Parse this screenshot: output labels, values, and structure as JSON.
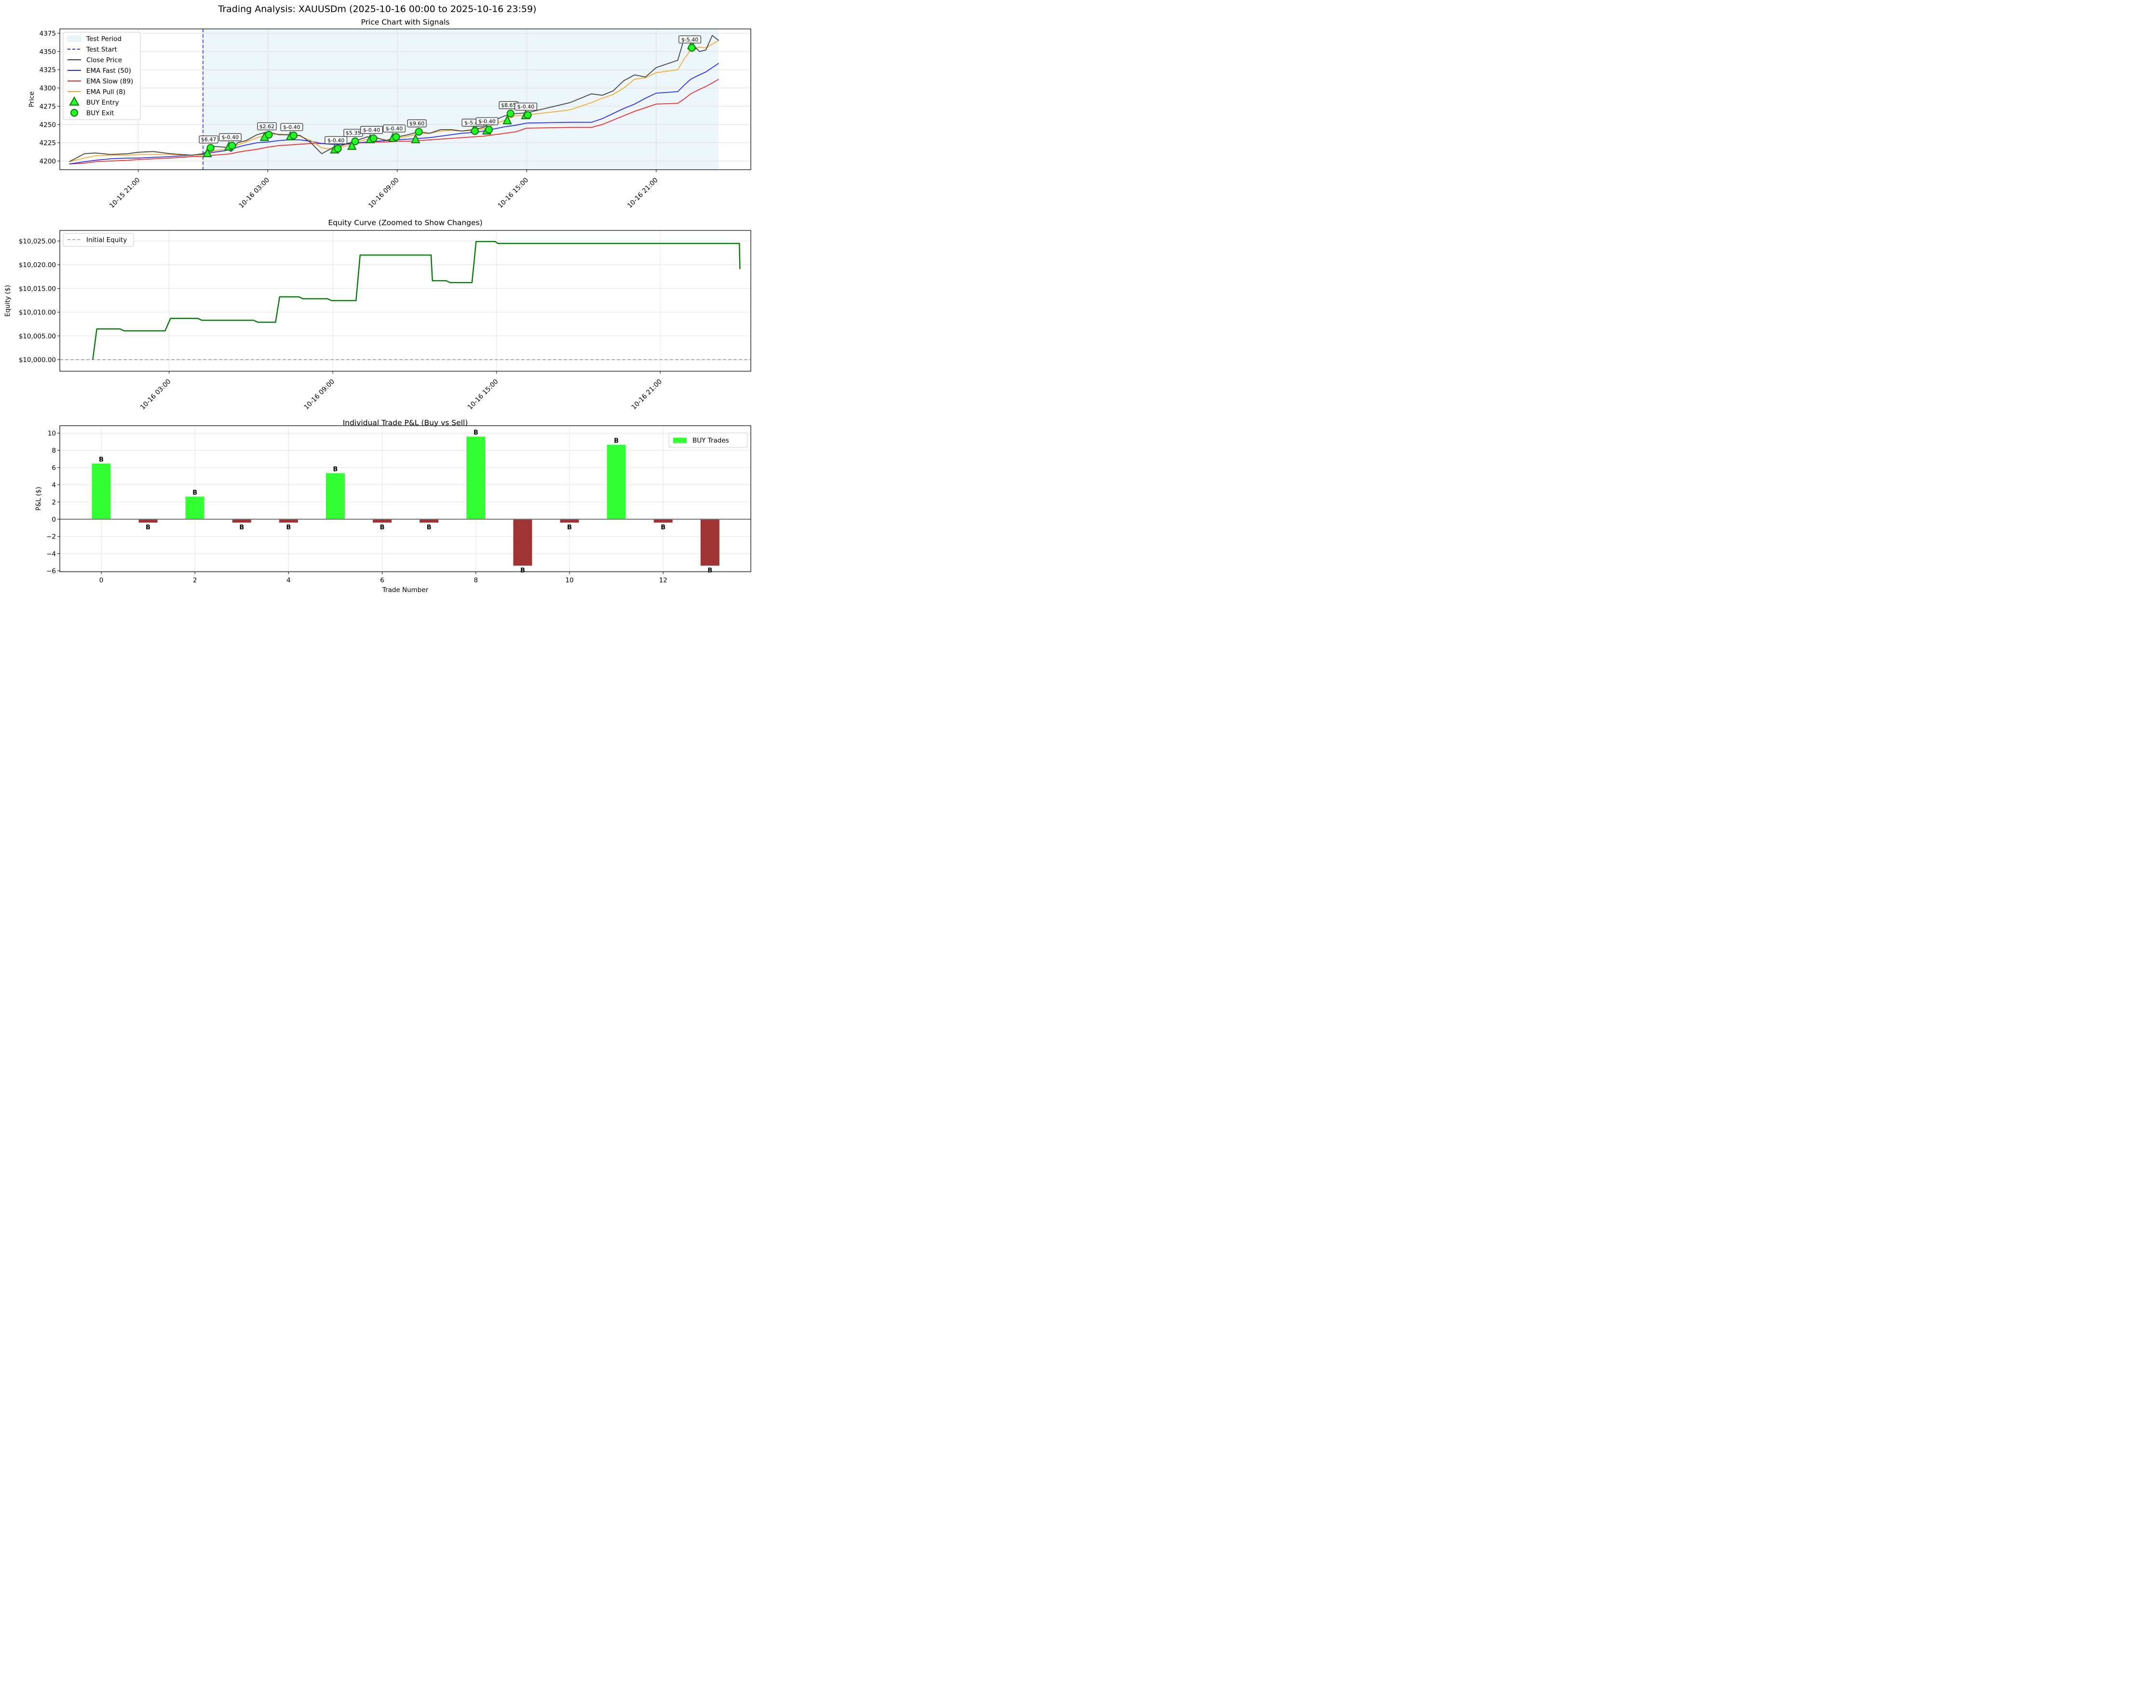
{
  "figure": {
    "title": "Trading Analysis: XAUUSDm (2025-10-16 00:00 to 2025-10-16 23:59)"
  },
  "chart_data": [
    {
      "id": "price",
      "type": "line",
      "title": "Price Chart with Signals",
      "xlabel": "",
      "ylabel": "Price",
      "ylim": [
        4188,
        4380
      ],
      "yticks": [
        4200,
        4225,
        4250,
        4275,
        4300,
        4325,
        4350,
        4375
      ],
      "xticks": [
        "10-15 21:00",
        "10-16 03:00",
        "10-16 09:00",
        "10-16 15:00",
        "10-16 21:00"
      ],
      "grid": true,
      "legend_position": "upper left",
      "legend": [
        "Test Period",
        "Test Start",
        "Close Price",
        "EMA Fast (50)",
        "EMA Slow (89)",
        "EMA Pull (8)",
        "BUY Entry",
        "BUY Exit"
      ],
      "colors": {
        "test_period": "#add8e6",
        "test_start": "#3333ff",
        "close": "#3b3b3b",
        "ema_fast": "#2222ee",
        "ema_slow": "#ee2222",
        "ema_pull": "#f5a623",
        "marker_fill": "#22ff22",
        "marker_edge": "#1a7a1a"
      },
      "x_hours": [
        -6.2,
        -5.5,
        -5,
        -4.3,
        -3.5,
        -3,
        -2.3,
        -1.5,
        -1,
        -0.5,
        0,
        0.5,
        1,
        1.3,
        1.6,
        2,
        2.5,
        3,
        3.5,
        4,
        4.5,
        5,
        5.5,
        6,
        6.5,
        7,
        7.3,
        7.6,
        8,
        8.5,
        9,
        9.5,
        10,
        10.5,
        11,
        11.5,
        12,
        12.5,
        13,
        13.5,
        14,
        14.5,
        15,
        17,
        18,
        18.5,
        19,
        19.5,
        20,
        20.5,
        21,
        22,
        22.3,
        22.6,
        23,
        23.3,
        23.6,
        23.9
      ],
      "series": [
        {
          "name": "Close Price",
          "values": [
            4199,
            4210,
            4211,
            4209,
            4210,
            4212,
            4213,
            4210,
            4209,
            4208,
            4210,
            4220,
            4219,
            4213,
            4225,
            4228,
            4236,
            4240,
            4236,
            4236,
            4235,
            4225,
            4210,
            4218,
            4222,
            4227,
            4230,
            4233,
            4232,
            4228,
            4233,
            4236,
            4240,
            4238,
            4243,
            4243,
            4241,
            4243,
            4246,
            4256,
            4262,
            4265,
            4266,
            4280,
            4292,
            4290,
            4296,
            4310,
            4318,
            4315,
            4328,
            4338,
            4368,
            4363,
            4350,
            4352,
            4372,
            4365
          ]
        },
        {
          "name": "EMA Fast (50)",
          "values": [
            4196,
            4199,
            4201,
            4203,
            4204,
            4204,
            4205,
            4206,
            4207,
            4208,
            4209,
            4212,
            4214,
            4216,
            4219,
            4222,
            4225,
            4226,
            4228,
            4229,
            4229,
            4227,
            4224,
            4223,
            4223,
            4224,
            4225,
            4226,
            4227,
            4228,
            4229,
            4230,
            4231,
            4232,
            4234,
            4236,
            4238,
            4239,
            4241,
            4244,
            4247,
            4249,
            4252,
            4253,
            4253,
            4258,
            4265,
            4272,
            4278,
            4286,
            4293,
            4295,
            4304,
            4312,
            4318,
            4322,
            4328,
            4334
          ]
        },
        {
          "name": "EMA Slow (89)",
          "values": [
            4196,
            4197,
            4199,
            4200,
            4201,
            4202,
            4203,
            4204,
            4205,
            4206,
            4206,
            4208,
            4209,
            4210,
            4212,
            4214,
            4216,
            4219,
            4221,
            4222,
            4223,
            4224,
            4224,
            4223,
            4223,
            4224,
            4225,
            4225,
            4226,
            4226,
            4227,
            4227,
            4228,
            4229,
            4230,
            4231,
            4232,
            4233,
            4234,
            4236,
            4238,
            4240,
            4245,
            4246,
            4246,
            4250,
            4256,
            4262,
            4268,
            4273,
            4278,
            4279,
            4285,
            4292,
            4298,
            4302,
            4307,
            4312
          ]
        },
        {
          "name": "EMA Pull (8)",
          "values": [
            4199,
            4204,
            4207,
            4208,
            4208,
            4209,
            4209,
            4209,
            4208,
            4208,
            4208,
            4214,
            4216,
            4216,
            4222,
            4226,
            4232,
            4236,
            4237,
            4236,
            4234,
            4228,
            4218,
            4216,
            4220,
            4223,
            4227,
            4230,
            4231,
            4229,
            4231,
            4234,
            4237,
            4238,
            4241,
            4242,
            4241,
            4242,
            4244,
            4250,
            4256,
            4262,
            4263,
            4270,
            4280,
            4286,
            4291,
            4300,
            4312,
            4314,
            4321,
            4325,
            4340,
            4352,
            4356,
            4355,
            4360,
            4365
          ]
        }
      ],
      "trades": [
        {
          "entry_h": 0.2,
          "entry_price": 4210,
          "exit_h": 0.35,
          "exit_price": 4218,
          "label": "$6.47"
        },
        {
          "entry_h": 1.2,
          "entry_price": 4219,
          "exit_h": 1.35,
          "exit_price": 4221,
          "label": "$-0.40"
        },
        {
          "entry_h": 2.85,
          "entry_price": 4232,
          "exit_h": 3.05,
          "exit_price": 4236,
          "label": "$2.62"
        },
        {
          "entry_h": 4.05,
          "entry_price": 4233,
          "exit_h": 4.2,
          "exit_price": 4235,
          "label": "$-0.40"
        },
        {
          "entry_h": 6.1,
          "entry_price": 4215,
          "exit_h": 6.25,
          "exit_price": 4217,
          "label": "$-0.40"
        },
        {
          "entry_h": 6.9,
          "entry_price": 4220,
          "exit_h": 7.05,
          "exit_price": 4227,
          "label": "$5.35"
        },
        {
          "entry_h": 7.75,
          "entry_price": 4229,
          "exit_h": 7.9,
          "exit_price": 4231,
          "label": "$-0.40"
        },
        {
          "entry_h": 8.8,
          "entry_price": 4231,
          "exit_h": 8.95,
          "exit_price": 4233,
          "label": "$-0.40"
        },
        {
          "entry_h": 9.85,
          "entry_price": 4229,
          "exit_h": 10.0,
          "exit_price": 4240,
          "label": "$9.60"
        },
        {
          "entry_h": 12.6,
          "entry_price": 4244,
          "exit_h": 12.6,
          "exit_price": 4241,
          "label": "$-5.40"
        },
        {
          "entry_h": 13.15,
          "entry_price": 4241,
          "exit_h": 13.25,
          "exit_price": 4243,
          "label": "$-0.40"
        },
        {
          "entry_h": 14.1,
          "entry_price": 4255,
          "exit_h": 14.25,
          "exit_price": 4265,
          "label": "$8.65"
        },
        {
          "entry_h": 14.95,
          "entry_price": 4262,
          "exit_h": 15.05,
          "exit_price": 4263,
          "label": "$-0.40"
        },
        {
          "entry_h": 22.65,
          "entry_price": 4358,
          "exit_h": 22.65,
          "exit_price": 4355,
          "label": "$-5.40"
        }
      ],
      "test_start_h": 0,
      "test_end_h": 23.9
    },
    {
      "id": "equity",
      "type": "line",
      "title": "Equity Curve (Zoomed to Show Changes)",
      "xlabel": "",
      "ylabel": "Equity ($)",
      "ylim": [
        9997.5,
        10027.2
      ],
      "yticks": [
        "$10,000.00",
        "$10,005.00",
        "$10,010.00",
        "$10,015.00",
        "$10,020.00",
        "$10,025.00"
      ],
      "ytick_values": [
        10000,
        10005,
        10010,
        10015,
        10020,
        10025
      ],
      "xticks": [
        "10-16 03:00",
        "10-16 09:00",
        "10-16 15:00",
        "10-16 21:00"
      ],
      "grid": true,
      "legend": [
        "Initial Equity"
      ],
      "initial_equity": 10000,
      "line_color": "#007a00",
      "x_hours": [
        0.2,
        0.35,
        1.2,
        1.35,
        2.85,
        3.05,
        4.05,
        4.2,
        6.1,
        6.25,
        6.9,
        7.05,
        7.75,
        7.9,
        8.8,
        8.95,
        9.85,
        10.0,
        12.6,
        12.65,
        13.15,
        13.3,
        14.1,
        14.25,
        14.95,
        15.05,
        23.9,
        23.92
      ],
      "values": [
        10000,
        10006.47,
        10006.47,
        10006.07,
        10006.07,
        10008.69,
        10008.69,
        10008.29,
        10008.29,
        10007.89,
        10007.89,
        10013.24,
        10013.24,
        10012.84,
        10012.84,
        10012.44,
        10012.44,
        10022.04,
        10022.04,
        10016.64,
        10016.64,
        10016.24,
        10016.24,
        10024.89,
        10024.89,
        10024.49,
        10024.49,
        10019.09
      ]
    },
    {
      "id": "pnl",
      "type": "bar",
      "title": "Individual Trade P&L (Buy vs Sell)",
      "xlabel": "Trade Number",
      "ylabel": "P&L ($)",
      "ylim": [
        -6.1,
        10.3
      ],
      "yticks": [
        -6,
        -4,
        -2,
        0,
        2,
        4,
        6,
        8,
        10
      ],
      "ytick_labels": [
        "−6",
        "−4",
        "−2",
        "0",
        "2",
        "4",
        "6",
        "8",
        "10"
      ],
      "xticks": [
        0,
        2,
        4,
        6,
        8,
        10,
        12
      ],
      "categories": [
        0,
        1,
        2,
        3,
        4,
        5,
        6,
        7,
        8,
        9,
        10,
        11,
        12,
        13
      ],
      "values": [
        6.47,
        -0.4,
        2.62,
        -0.4,
        -0.4,
        5.35,
        -0.4,
        -0.4,
        9.6,
        -5.4,
        -0.4,
        8.65,
        -0.4,
        -5.4
      ],
      "bar_labels": [
        "B",
        "B",
        "B",
        "B",
        "B",
        "B",
        "B",
        "B",
        "B",
        "B",
        "B",
        "B",
        "B",
        "B"
      ],
      "legend": [
        "BUY Trades"
      ],
      "legend_position": "upper right",
      "grid": true,
      "colors": {
        "positive": "#33ff33",
        "negative": "#a03434",
        "zero_line": "#777777"
      }
    }
  ]
}
